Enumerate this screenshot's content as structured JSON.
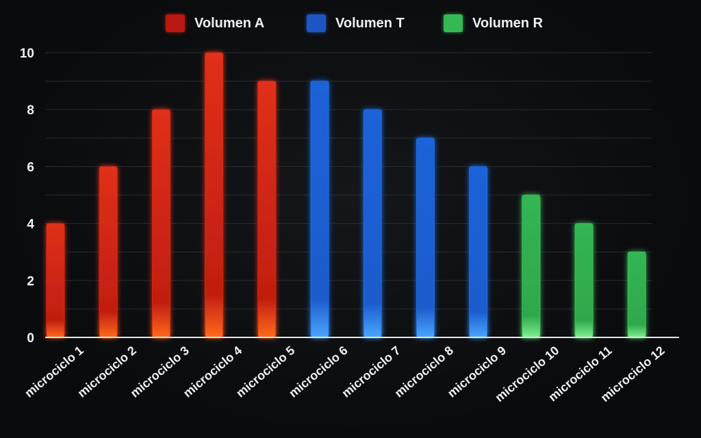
{
  "chart_data": {
    "type": "bar",
    "title": "",
    "xlabel": "",
    "ylabel": "",
    "ylim": [
      0,
      10
    ],
    "y_ticks": [
      "0",
      "2",
      "4",
      "6",
      "8",
      "10"
    ],
    "grid": true,
    "legend_position": "top-center",
    "categories": [
      "microciclo 1",
      "microciclo 2",
      "microciclo 3",
      "microciclo 4",
      "microciclo 5",
      "microciclo 6",
      "microciclo 7",
      "microciclo 8",
      "microciclo 9",
      "microciclo 10",
      "microciclo 11",
      "microciclo 12"
    ],
    "series": [
      {
        "name": "Volumen A",
        "color": "#d42a16",
        "values": [
          4,
          6,
          8,
          10,
          9,
          null,
          null,
          null,
          null,
          null,
          null,
          null
        ]
      },
      {
        "name": "Volumen T",
        "color": "#1f6fe0",
        "values": [
          null,
          null,
          null,
          null,
          null,
          9,
          8,
          7,
          6,
          null,
          null,
          null
        ]
      },
      {
        "name": "Volumen R",
        "color": "#3dc45c",
        "values": [
          null,
          null,
          null,
          null,
          null,
          null,
          null,
          null,
          null,
          5,
          4,
          3
        ]
      }
    ]
  }
}
